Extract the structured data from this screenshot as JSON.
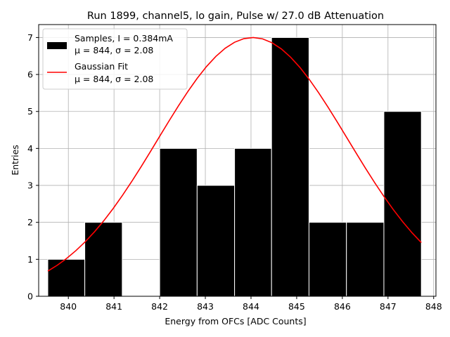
{
  "chart_data": {
    "type": "bar",
    "title": "Run 1899, channel5, lo gain, Pulse w/ 27.0 dB Attenuation",
    "xlabel": "Energy from OFCs [ADC Counts]",
    "ylabel": "Entries",
    "xlim": [
      839.35,
      848.05
    ],
    "ylim": [
      0,
      7.35
    ],
    "x_ticks": [
      840,
      841,
      842,
      843,
      844,
      845,
      846,
      847,
      848
    ],
    "y_ticks": [
      0,
      1,
      2,
      3,
      4,
      5,
      6,
      7
    ],
    "grid": true,
    "legend_position": "top-left",
    "histogram": {
      "name_line1": "Samples, I = 0.384mA",
      "name_line2": "μ = 844, σ = 2.08",
      "bins": [
        {
          "x0": 839.55,
          "x1": 840.36,
          "value": 1
        },
        {
          "x0": 840.36,
          "x1": 841.18,
          "value": 2
        },
        {
          "x0": 841.18,
          "x1": 842.0,
          "value": 0
        },
        {
          "x0": 842.0,
          "x1": 842.82,
          "value": 4
        },
        {
          "x0": 842.82,
          "x1": 843.64,
          "value": 3
        },
        {
          "x0": 843.64,
          "x1": 844.45,
          "value": 4
        },
        {
          "x0": 844.45,
          "x1": 845.27,
          "value": 7
        },
        {
          "x0": 845.27,
          "x1": 846.09,
          "value": 2
        },
        {
          "x0": 846.09,
          "x1": 846.91,
          "value": 2
        },
        {
          "x0": 846.91,
          "x1": 847.73,
          "value": 5
        }
      ],
      "color": "#000000"
    },
    "fit": {
      "name_line1": "Gaussian Fit",
      "name_line2": "μ = 844, σ = 2.08",
      "color": "#ff0000",
      "amplitude": 7.0,
      "mu": 844.04,
      "sigma": 2.08,
      "x_start": 839.55,
      "x_end": 847.73
    }
  }
}
